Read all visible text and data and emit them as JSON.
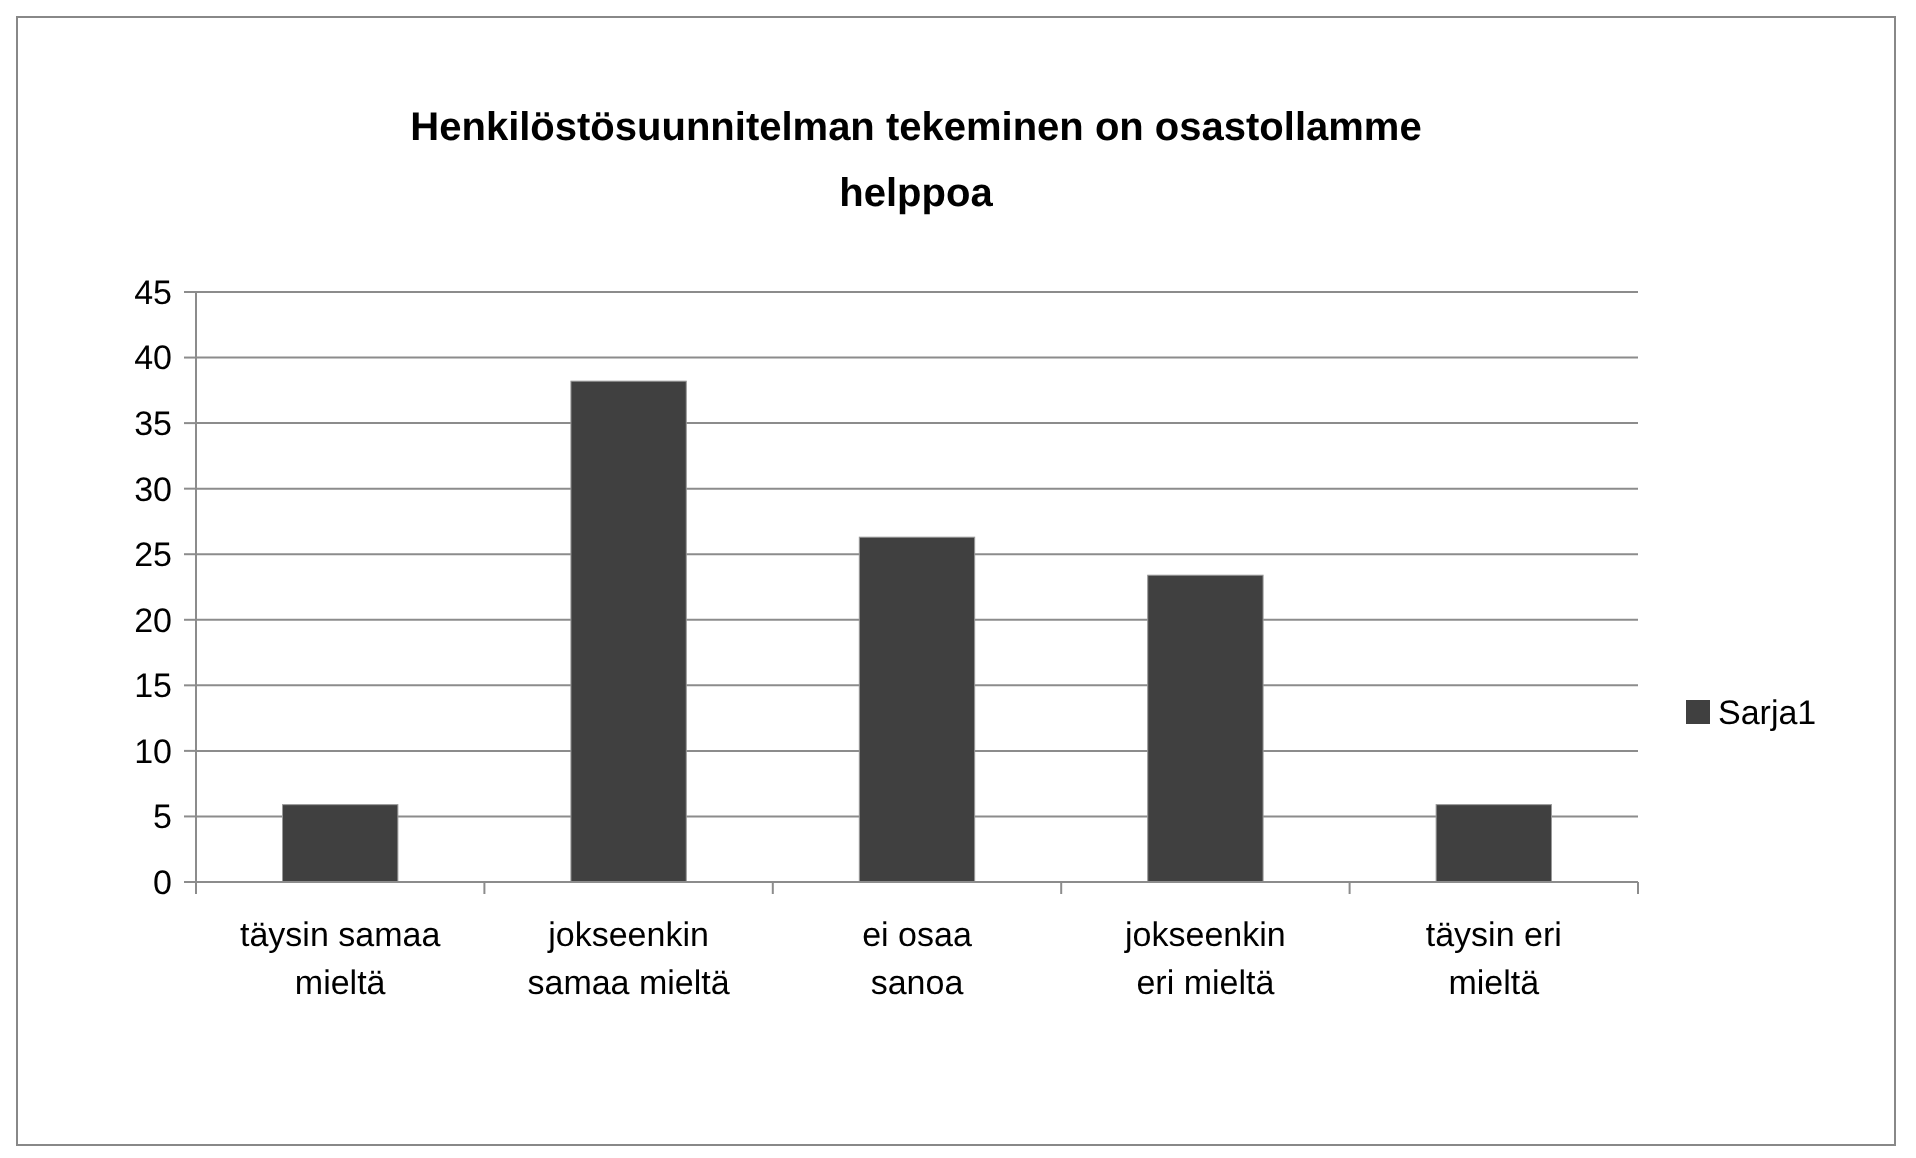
{
  "chart_data": {
    "type": "bar",
    "title": "Henkilöstösuunnitelman tekeminen on osastollamme helppoa",
    "categories": [
      "täysin samaa mieltä",
      "jokseenkin samaa mieltä",
      "ei osaa sanoa",
      "jokseenkin eri mieltä",
      "täysin eri mieltä"
    ],
    "series": [
      {
        "name": "Sarja1",
        "color": "#404040",
        "values": [
          5.9,
          38.2,
          26.3,
          23.4,
          5.9
        ]
      }
    ],
    "ylim": [
      0,
      45
    ],
    "yticks": [
      0,
      5,
      10,
      15,
      20,
      25,
      30,
      35,
      40,
      45
    ],
    "grid": "y",
    "legend": "right"
  }
}
